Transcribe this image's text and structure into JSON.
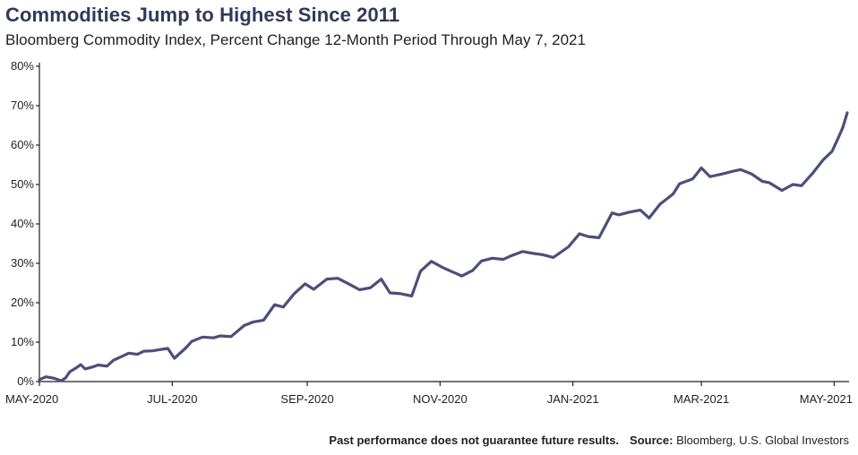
{
  "header": {
    "title": "Commodities Jump to Highest Since 2011",
    "subtitle": "Bloomberg Commodity Index, Percent Change 12-Month Period Through May 7, 2021"
  },
  "footer": {
    "disclaimer": "Past performance does not guarantee future results.",
    "source_label": "Source:",
    "source_text": "Bloomberg, U.S. Global Investors"
  },
  "colors": {
    "line": "#4a5079",
    "title": "#2f3a5a",
    "axis": "#1f1f1f"
  },
  "chart_data": {
    "type": "line",
    "title": "Commodities Jump to Highest Since 2011",
    "subtitle": "Bloomberg Commodity Index, Percent Change 12-Month Period Through May 7, 2021",
    "xlabel": "",
    "ylabel": "",
    "ylim": [
      0,
      80
    ],
    "y_ticks": [
      0,
      10,
      20,
      30,
      40,
      50,
      60,
      70,
      80
    ],
    "y_tick_labels": [
      "0%",
      "10%",
      "20%",
      "30%",
      "40%",
      "50%",
      "60%",
      "70%",
      "80%"
    ],
    "x_range": [
      "2020-05-01",
      "2021-05-07"
    ],
    "x_ticks": [
      "2020-05-01",
      "2020-07-01",
      "2020-09-01",
      "2020-11-01",
      "2021-01-01",
      "2021-03-01",
      "2021-05-01"
    ],
    "x_tick_labels": [
      "MAY-2020",
      "JUL-2020",
      "SEP-2020",
      "NOV-2020",
      "JAN-2021",
      "MAR-2021",
      "MAY-2021"
    ],
    "grid": false,
    "legend": "none",
    "series": [
      {
        "x": [
          "2020-05-01",
          "2020-05-04",
          "2020-05-06",
          "2020-05-08",
          "2020-05-11",
          "2020-05-13",
          "2020-05-15",
          "2020-05-18",
          "2020-05-20",
          "2020-05-22",
          "2020-05-26",
          "2020-05-28",
          "2020-06-01",
          "2020-06-04",
          "2020-06-08",
          "2020-06-11",
          "2020-06-15",
          "2020-06-18",
          "2020-06-22",
          "2020-06-25",
          "2020-06-29",
          "2020-07-02",
          "2020-07-07",
          "2020-07-10",
          "2020-07-15",
          "2020-07-20",
          "2020-07-23",
          "2020-07-28",
          "2020-08-03",
          "2020-08-07",
          "2020-08-12",
          "2020-08-17",
          "2020-08-21",
          "2020-08-26",
          "2020-08-31",
          "2020-09-04",
          "2020-09-10",
          "2020-09-15",
          "2020-09-21",
          "2020-09-25",
          "2020-09-30",
          "2020-10-05",
          "2020-10-09",
          "2020-10-14",
          "2020-10-19",
          "2020-10-23",
          "2020-10-28",
          "2020-11-02",
          "2020-11-06",
          "2020-11-11",
          "2020-11-16",
          "2020-11-20",
          "2020-11-25",
          "2020-11-30",
          "2020-12-04",
          "2020-12-09",
          "2020-12-14",
          "2020-12-18",
          "2020-12-23",
          "2020-12-30",
          "2021-01-04",
          "2021-01-08",
          "2021-01-13",
          "2021-01-19",
          "2021-01-22",
          "2021-01-27",
          "2021-02-01",
          "2021-02-05",
          "2021-02-10",
          "2021-02-16",
          "2021-02-19",
          "2021-02-25",
          "2021-03-01",
          "2021-03-05",
          "2021-03-10",
          "2021-03-15",
          "2021-03-19",
          "2021-03-24",
          "2021-03-29",
          "2021-04-01",
          "2021-04-07",
          "2021-04-12",
          "2021-04-16",
          "2021-04-21",
          "2021-04-26",
          "2021-04-30",
          "2021-05-03",
          "2021-05-05",
          "2021-05-07"
        ],
        "values": [
          0.5,
          1.2,
          1.0,
          0.8,
          0.2,
          0.9,
          2.5,
          3.5,
          4.3,
          3.2,
          3.8,
          4.2,
          3.9,
          5.4,
          6.4,
          7.2,
          6.9,
          7.7,
          7.8,
          8.1,
          8.4,
          5.9,
          8.4,
          10.2,
          11.3,
          11.1,
          11.6,
          11.4,
          14.2,
          15.1,
          15.6,
          19.5,
          18.9,
          22.3,
          24.8,
          23.4,
          26.0,
          26.2,
          24.5,
          23.3,
          23.8,
          26.0,
          22.5,
          22.3,
          21.7,
          28.0,
          30.5,
          29.0,
          28.0,
          26.8,
          28.2,
          30.6,
          31.3,
          31.0,
          32.0,
          33.0,
          32.5,
          32.2,
          31.5,
          34.2,
          37.5,
          36.8,
          36.5,
          42.8,
          42.3,
          43.0,
          43.5,
          41.5,
          45.0,
          47.6,
          50.2,
          51.4,
          54.2,
          52.0,
          52.6,
          53.3,
          53.8,
          52.7,
          50.8,
          50.5,
          48.5,
          50.0,
          49.7,
          52.8,
          56.3,
          58.4,
          62.0,
          64.5,
          68.2
        ]
      }
    ]
  }
}
